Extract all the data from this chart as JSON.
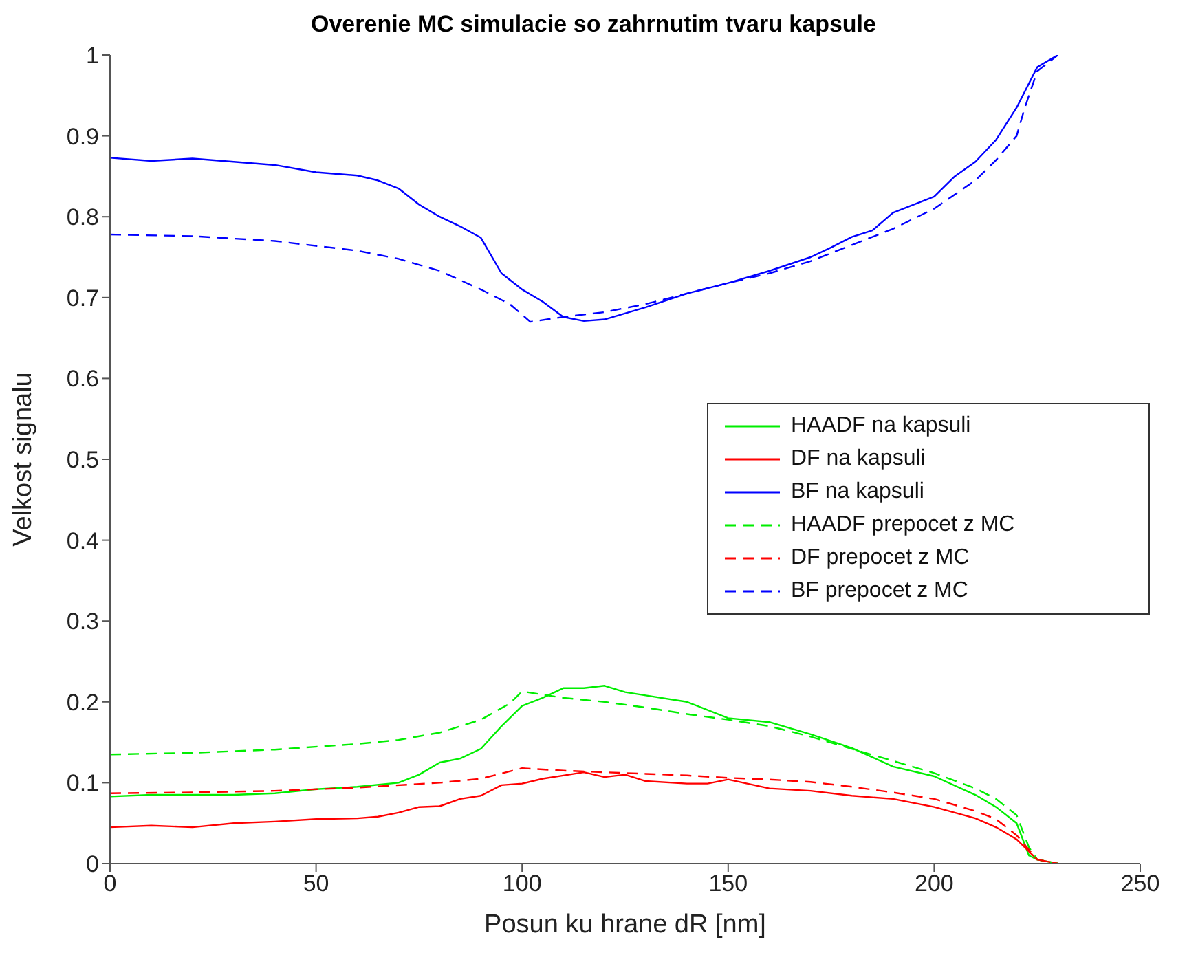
{
  "chart_data": {
    "type": "line",
    "title": "Overenie MC simulacie so zahrnutim tvaru kapsule",
    "xlabel": "Posun ku hrane   dR [nm]",
    "ylabel": "Velkost signalu",
    "xlim": [
      0,
      250
    ],
    "xticks": [
      0,
      50,
      100,
      150,
      200,
      250
    ],
    "ylim": [
      0,
      1
    ],
    "yticks": [
      0,
      0.1,
      0.2,
      0.3,
      0.4,
      0.5,
      0.6,
      0.7,
      0.8,
      0.9,
      1
    ],
    "grid": false,
    "legend": "right",
    "marker": "none",
    "series": [
      {
        "name": "HAADF na kapsuli",
        "color": "#00ee00",
        "line_style": "solid",
        "x": [
          0,
          10,
          20,
          30,
          40,
          50,
          60,
          70,
          75,
          80,
          85,
          90,
          95,
          100,
          105,
          110,
          115,
          120,
          125,
          130,
          140,
          150,
          160,
          170,
          180,
          190,
          200,
          210,
          215,
          220,
          223,
          225,
          230
        ],
        "values": [
          0.083,
          0.085,
          0.085,
          0.085,
          0.087,
          0.092,
          0.095,
          0.1,
          0.11,
          0.125,
          0.13,
          0.142,
          0.17,
          0.195,
          0.205,
          0.217,
          0.217,
          0.22,
          0.212,
          0.208,
          0.2,
          0.18,
          0.175,
          0.16,
          0.143,
          0.12,
          0.108,
          0.085,
          0.07,
          0.05,
          0.01,
          0.005,
          0
        ]
      },
      {
        "name": "DF na kapsuli",
        "color": "#ff0000",
        "line_style": "solid",
        "x": [
          0,
          10,
          20,
          30,
          40,
          50,
          60,
          65,
          70,
          75,
          80,
          85,
          90,
          95,
          100,
          105,
          110,
          115,
          120,
          125,
          130,
          140,
          145,
          150,
          160,
          170,
          180,
          190,
          200,
          210,
          215,
          220,
          225,
          230
        ],
        "values": [
          0.045,
          0.047,
          0.045,
          0.05,
          0.052,
          0.055,
          0.056,
          0.058,
          0.063,
          0.07,
          0.071,
          0.08,
          0.084,
          0.097,
          0.099,
          0.105,
          0.109,
          0.113,
          0.107,
          0.11,
          0.102,
          0.099,
          0.099,
          0.104,
          0.093,
          0.09,
          0.084,
          0.08,
          0.07,
          0.056,
          0.045,
          0.03,
          0.005,
          0
        ]
      },
      {
        "name": "BF na kapsuli",
        "color": "#0000ff",
        "line_style": "solid",
        "x": [
          0,
          10,
          20,
          30,
          40,
          50,
          60,
          65,
          70,
          75,
          80,
          85,
          90,
          95,
          100,
          105,
          110,
          115,
          120,
          130,
          140,
          150,
          160,
          170,
          175,
          180,
          185,
          190,
          200,
          205,
          210,
          215,
          220,
          225,
          230
        ],
        "values": [
          0.873,
          0.869,
          0.872,
          0.868,
          0.864,
          0.855,
          0.851,
          0.845,
          0.835,
          0.815,
          0.8,
          0.788,
          0.774,
          0.73,
          0.71,
          0.695,
          0.676,
          0.671,
          0.673,
          0.688,
          0.705,
          0.718,
          0.733,
          0.75,
          0.762,
          0.775,
          0.783,
          0.805,
          0.825,
          0.85,
          0.868,
          0.895,
          0.935,
          0.985,
          1
        ]
      },
      {
        "name": "HAADF prepocet z MC",
        "color": "#00ee00",
        "line_style": "dashed",
        "x": [
          0,
          20,
          40,
          60,
          70,
          80,
          90,
          97,
          100,
          110,
          120,
          130,
          140,
          150,
          160,
          170,
          180,
          190,
          200,
          210,
          215,
          220,
          223,
          225,
          230
        ],
        "values": [
          0.135,
          0.137,
          0.141,
          0.148,
          0.153,
          0.162,
          0.178,
          0.198,
          0.213,
          0.205,
          0.2,
          0.193,
          0.185,
          0.178,
          0.17,
          0.157,
          0.142,
          0.127,
          0.112,
          0.093,
          0.08,
          0.06,
          0.02,
          0.005,
          0
        ]
      },
      {
        "name": "DF prepocet z MC",
        "color": "#ff0000",
        "line_style": "dashed",
        "x": [
          0,
          20,
          40,
          60,
          80,
          90,
          100,
          110,
          120,
          130,
          140,
          150,
          160,
          170,
          180,
          190,
          200,
          210,
          215,
          220,
          225,
          230
        ],
        "values": [
          0.087,
          0.088,
          0.09,
          0.094,
          0.1,
          0.105,
          0.118,
          0.115,
          0.113,
          0.111,
          0.109,
          0.106,
          0.104,
          0.101,
          0.095,
          0.088,
          0.08,
          0.065,
          0.055,
          0.035,
          0.005,
          0
        ]
      },
      {
        "name": "BF prepocet z MC",
        "color": "#0000ff",
        "line_style": "dashed",
        "x": [
          0,
          20,
          40,
          60,
          70,
          80,
          90,
          97,
          102,
          110,
          120,
          130,
          140,
          150,
          160,
          170,
          180,
          190,
          200,
          210,
          215,
          220,
          222,
          225,
          230
        ],
        "values": [
          0.778,
          0.776,
          0.77,
          0.758,
          0.748,
          0.733,
          0.71,
          0.692,
          0.67,
          0.676,
          0.682,
          0.692,
          0.705,
          0.718,
          0.73,
          0.745,
          0.765,
          0.785,
          0.81,
          0.845,
          0.87,
          0.9,
          0.935,
          0.98,
          1
        ]
      }
    ]
  }
}
